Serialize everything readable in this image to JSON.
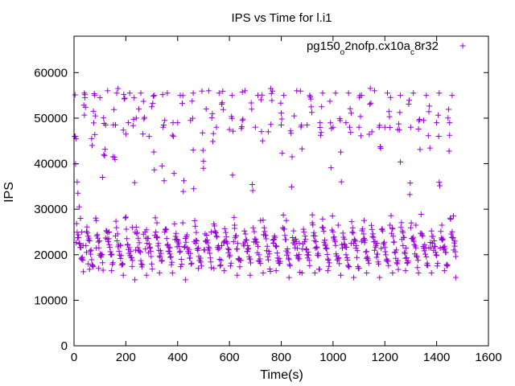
{
  "chart_data": {
    "type": "scatter",
    "title": "IPS vs Time for l.i1",
    "xlabel": "Time(s)",
    "ylabel": "IPS",
    "xlim": [
      0,
      1600
    ],
    "ylim": [
      0,
      68000
    ],
    "xticks": [
      0,
      200,
      400,
      600,
      800,
      1000,
      1200,
      1400,
      1600
    ],
    "yticks": [
      0,
      10000,
      20000,
      30000,
      40000,
      50000,
      60000
    ],
    "xtick_labels": [
      "0",
      "200",
      "400",
      "600",
      "800",
      "1000",
      "1200",
      "1400",
      "1600"
    ],
    "ytick_labels": [
      "0",
      "10000",
      "20000",
      "30000",
      "40000",
      "50000",
      "60000"
    ],
    "grid": false,
    "legend_position": "top-right",
    "legend": {
      "name": "pg150o2nofp.cx10ac8r32",
      "parts": [
        {
          "text": "pg150",
          "sub": false
        },
        {
          "text": "o",
          "sub": true
        },
        {
          "text": "2nofp.cx10a",
          "sub": false
        },
        {
          "text": "c",
          "sub": true
        },
        {
          "text": "8r32",
          "sub": false
        }
      ]
    },
    "marker": "+",
    "color": "#9400d3",
    "series": [
      {
        "name": "pg150o2nofp.cx10ac8r32",
        "x_start": 2,
        "x_end": 1474,
        "sample_interval_s": 2,
        "cycle_length_s": 38,
        "low_band": {
          "min": 14000,
          "max": 29000,
          "typical": 19000
        },
        "high_band": {
          "min": 33000,
          "max": 57000,
          "typical": 50000
        },
        "points": [
          [
            5,
            46000
          ],
          [
            8,
            45500
          ],
          [
            12,
            36000
          ],
          [
            15,
            33500
          ],
          [
            20,
            30500
          ],
          [
            25,
            28000
          ],
          [
            30,
            25000
          ],
          [
            35,
            22000
          ],
          [
            40,
            55500
          ],
          [
            42,
            54500
          ],
          [
            48,
            20500
          ],
          [
            55,
            18000
          ],
          [
            60,
            16800
          ],
          [
            68,
            45500
          ],
          [
            70,
            44000
          ],
          [
            75,
            51500
          ],
          [
            80,
            55000
          ],
          [
            86,
            27500
          ],
          [
            95,
            17000
          ],
          [
            100,
            54500
          ],
          [
            110,
            37000
          ],
          [
            115,
            42000
          ],
          [
            122,
            48500
          ],
          [
            130,
            56000
          ],
          [
            135,
            25000
          ],
          [
            145,
            16500
          ],
          [
            150,
            41500
          ],
          [
            160,
            48500
          ],
          [
            165,
            55500
          ],
          [
            170,
            56500
          ],
          [
            180,
            22000
          ],
          [
            190,
            15500
          ],
          [
            200,
            46500
          ],
          [
            210,
            49000
          ],
          [
            215,
            55500
          ],
          [
            225,
            26000
          ],
          [
            235,
            14500
          ],
          [
            240,
            50000
          ],
          [
            250,
            52000
          ],
          [
            258,
            55500
          ],
          [
            268,
            24500
          ],
          [
            280,
            15500
          ],
          [
            290,
            46000
          ],
          [
            300,
            52500
          ],
          [
            310,
            55000
          ],
          [
            320,
            27000
          ],
          [
            330,
            16000
          ],
          [
            340,
            39500
          ],
          [
            350,
            49500
          ],
          [
            360,
            55500
          ],
          [
            370,
            21500
          ],
          [
            380,
            16000
          ],
          [
            400,
            49000
          ],
          [
            410,
            55000
          ],
          [
            420,
            27000
          ],
          [
            430,
            14500
          ],
          [
            450,
            49500
          ],
          [
            460,
            55500
          ],
          [
            470,
            22500
          ],
          [
            480,
            17000
          ],
          [
            500,
            39000
          ],
          [
            510,
            52000
          ],
          [
            520,
            56000
          ],
          [
            530,
            25000
          ],
          [
            540,
            17000
          ],
          [
            550,
            48000
          ],
          [
            560,
            55500
          ],
          [
            570,
            22000
          ],
          [
            580,
            16500
          ],
          [
            600,
            47500
          ],
          [
            610,
            55000
          ],
          [
            620,
            26500
          ],
          [
            630,
            15500
          ],
          [
            650,
            49500
          ],
          [
            660,
            56000
          ],
          [
            670,
            22000
          ],
          [
            680,
            15500
          ],
          [
            700,
            48000
          ],
          [
            710,
            55000
          ],
          [
            720,
            27500
          ],
          [
            730,
            16000
          ],
          [
            750,
            47000
          ],
          [
            760,
            56500
          ],
          [
            770,
            22500
          ],
          [
            780,
            16500
          ],
          [
            800,
            48500
          ],
          [
            810,
            55000
          ],
          [
            820,
            27500
          ],
          [
            830,
            15000
          ],
          [
            850,
            50500
          ],
          [
            860,
            56000
          ],
          [
            870,
            22500
          ],
          [
            880,
            16000
          ],
          [
            900,
            48500
          ],
          [
            910,
            55000
          ],
          [
            920,
            27000
          ],
          [
            930,
            16000
          ],
          [
            950,
            49000
          ],
          [
            960,
            55500
          ],
          [
            970,
            22000
          ],
          [
            980,
            16500
          ],
          [
            1000,
            48000
          ],
          [
            1010,
            55500
          ],
          [
            1020,
            26500
          ],
          [
            1030,
            15500
          ],
          [
            1050,
            49000
          ],
          [
            1060,
            55500
          ],
          [
            1070,
            22500
          ],
          [
            1080,
            15000
          ],
          [
            1100,
            48000
          ],
          [
            1110,
            55000
          ],
          [
            1120,
            27500
          ],
          [
            1130,
            16000
          ],
          [
            1150,
            47000
          ],
          [
            1160,
            56000
          ],
          [
            1170,
            22500
          ],
          [
            1180,
            15000
          ],
          [
            1200,
            48000
          ],
          [
            1210,
            55500
          ],
          [
            1220,
            26500
          ],
          [
            1230,
            16000
          ],
          [
            1250,
            47500
          ],
          [
            1260,
            55000
          ],
          [
            1270,
            22000
          ],
          [
            1280,
            16500
          ],
          [
            1300,
            48000
          ],
          [
            1310,
            55500
          ],
          [
            1320,
            26500
          ],
          [
            1330,
            16000
          ],
          [
            1350,
            49500
          ],
          [
            1360,
            55000
          ],
          [
            1370,
            21500
          ],
          [
            1380,
            16000
          ],
          [
            1400,
            49000
          ],
          [
            1410,
            55500
          ],
          [
            1420,
            26500
          ],
          [
            1430,
            16500
          ],
          [
            1450,
            49000
          ],
          [
            1460,
            55000
          ],
          [
            1465,
            28500
          ],
          [
            1470,
            23000
          ],
          [
            1474,
            15000
          ]
        ]
      }
    ]
  }
}
